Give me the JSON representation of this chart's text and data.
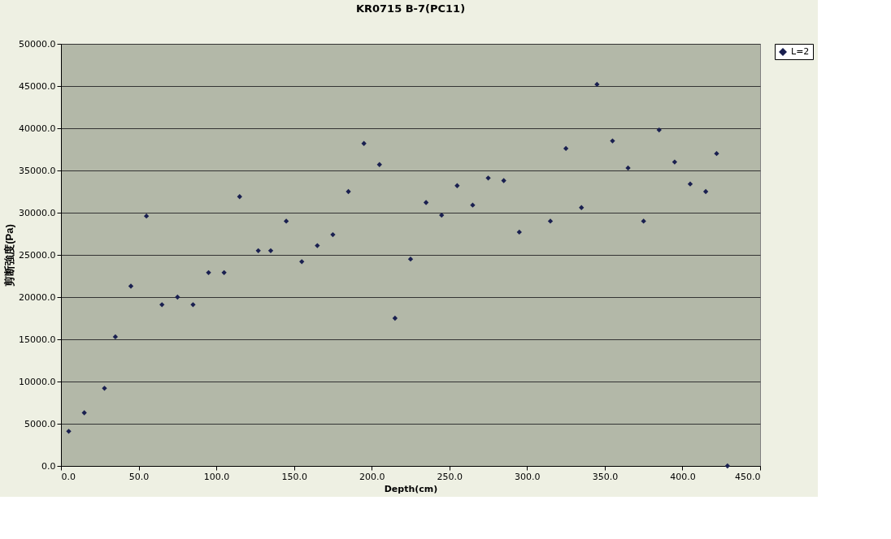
{
  "chart_data": {
    "type": "scatter",
    "title": "KR0715 B-7(PC11)",
    "xlabel": "Depth(cm)",
    "ylabel": "剪断強度(Pa)",
    "x": [
      5,
      15,
      28,
      35,
      45,
      55,
      65,
      75,
      85,
      95,
      105,
      115,
      127,
      135,
      145,
      155,
      165,
      175,
      185,
      195,
      205,
      215,
      225,
      235,
      245,
      255,
      265,
      275,
      285,
      295,
      315,
      325,
      335,
      345,
      355,
      365,
      375,
      385,
      395,
      405,
      415,
      422,
      429
    ],
    "series": [
      {
        "name": "L=2",
        "color": "#1a2050",
        "values": [
          4100,
          6300,
          9200,
          15300,
          21300,
          29600,
          19100,
          20000,
          19100,
          22900,
          22900,
          31900,
          25500,
          25500,
          29000,
          24200,
          26100,
          27400,
          32500,
          38200,
          35700,
          17500,
          24500,
          31200,
          29700,
          33200,
          30900,
          34100,
          33800,
          27700,
          29000,
          37600,
          30600,
          45200,
          38500,
          35300,
          29000,
          39800,
          36000,
          33400,
          32500,
          37000,
          0
        ]
      }
    ],
    "xlim": [
      0,
      450
    ],
    "xticks": [
      {
        "value": 0,
        "label": "0.0"
      },
      {
        "value": 50,
        "label": "50.0"
      },
      {
        "value": 100,
        "label": "100.0"
      },
      {
        "value": 150,
        "label": "150.0"
      },
      {
        "value": 200,
        "label": "200.0"
      },
      {
        "value": 250,
        "label": "250.0"
      },
      {
        "value": 300,
        "label": "300.0"
      },
      {
        "value": 350,
        "label": "350.0"
      },
      {
        "value": 400,
        "label": "400.0"
      },
      {
        "value": 450,
        "label": "450.0"
      }
    ],
    "ylim": [
      0,
      50000
    ],
    "yticks": [
      {
        "value": 0,
        "label": "0.0"
      },
      {
        "value": 5000,
        "label": "5000.0"
      },
      {
        "value": 10000,
        "label": "10000.0"
      },
      {
        "value": 15000,
        "label": "15000.0"
      },
      {
        "value": 20000,
        "label": "20000.0"
      },
      {
        "value": 25000,
        "label": "25000.0"
      },
      {
        "value": 30000,
        "label": "30000.0"
      },
      {
        "value": 35000,
        "label": "35000.0"
      },
      {
        "value": 40000,
        "label": "40000.0"
      },
      {
        "value": 45000,
        "label": "45000.0"
      },
      {
        "value": 50000,
        "label": "50000.0"
      }
    ],
    "grid": "y",
    "legend": "right",
    "marker": "diamond"
  }
}
